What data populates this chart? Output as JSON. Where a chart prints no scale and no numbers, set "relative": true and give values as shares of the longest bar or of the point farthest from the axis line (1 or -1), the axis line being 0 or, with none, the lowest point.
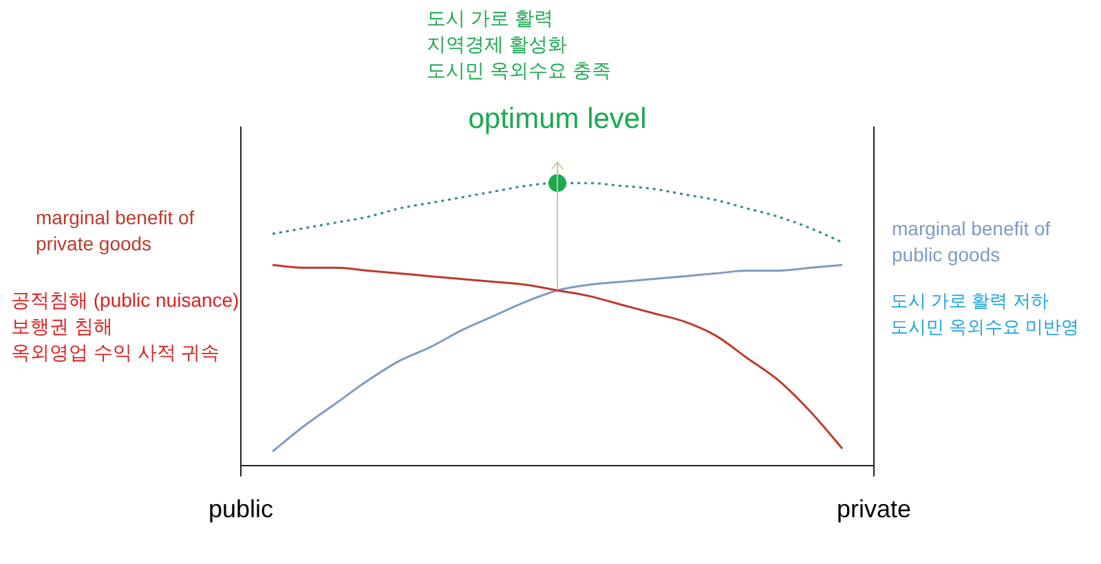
{
  "chart_data": {
    "type": "line",
    "relative": true,
    "legend": false,
    "marker": "none",
    "categories": [
      "public",
      null,
      null,
      null,
      null,
      null,
      null,
      null,
      null,
      null,
      null,
      null,
      null,
      null,
      null,
      null,
      null,
      null,
      null,
      null,
      "private"
    ],
    "series": [
      {
        "name": "marginal benefit of private goods",
        "color": "#c0392b",
        "values": [
          null,
          0.71,
          0.7,
          0.7,
          0.69,
          0.68,
          0.67,
          0.66,
          0.65,
          0.64,
          0.62,
          0.6,
          0.57,
          0.54,
          0.51,
          0.46,
          0.38,
          0.3,
          0.19,
          0.06,
          null
        ]
      },
      {
        "name": "marginal benefit of public goods",
        "color": "#7d9cc4",
        "values": [
          null,
          0.05,
          0.14,
          0.22,
          0.3,
          0.37,
          0.42,
          0.48,
          0.53,
          0.58,
          0.62,
          0.64,
          0.65,
          0.66,
          0.67,
          0.68,
          0.69,
          0.69,
          0.7,
          0.71,
          null
        ]
      },
      {
        "color": "#2e8b8b",
        "line_style": "dotted",
        "values": [
          null,
          0.82,
          0.84,
          0.86,
          0.88,
          0.91,
          0.93,
          0.95,
          0.97,
          0.99,
          1.0,
          1.0,
          0.99,
          0.98,
          0.96,
          0.94,
          0.91,
          0.88,
          0.84,
          0.79,
          null
        ]
      },
      {
        "name": "optimum level",
        "type": "scatter",
        "marker": "circle",
        "color": "#1aaa50",
        "values": [
          null,
          null,
          null,
          null,
          null,
          null,
          null,
          null,
          null,
          null,
          1.0,
          null,
          null,
          null,
          null,
          null,
          null,
          null,
          null,
          null,
          null
        ]
      }
    ],
    "annotations": [
      "공적침해 (public nuisance)\n보행권 침해\n옥외영업 수익 사적 귀속",
      "도시 가로 활력 저하\n도시민 옥외수요 미반영",
      "도시 가로 활력\n지역경제 활성화\n도시민 옥외수요 충족"
    ]
  }
}
